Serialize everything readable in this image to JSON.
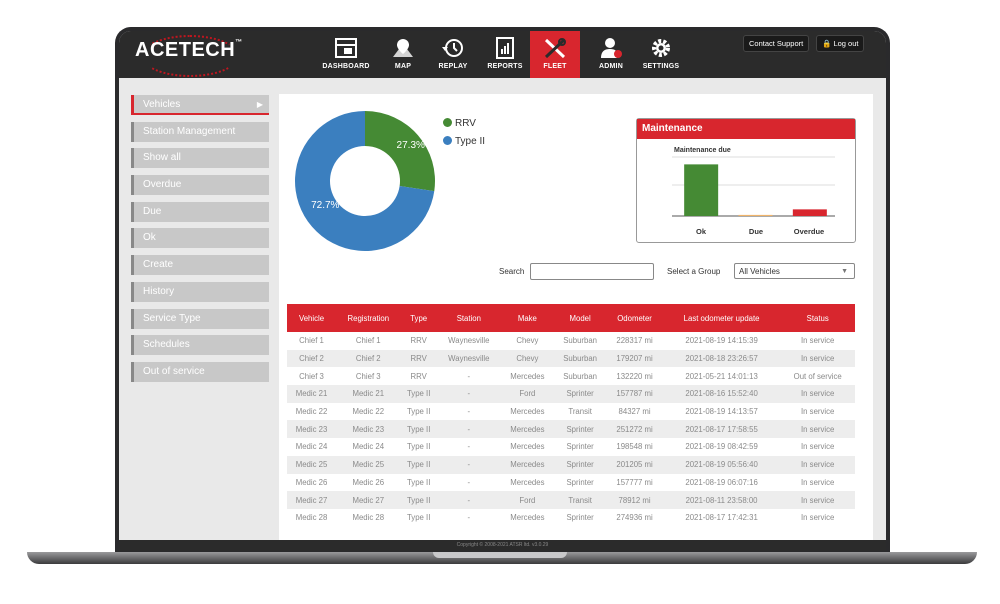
{
  "app": {
    "logo": "ACETECH",
    "logo_tm": "™",
    "nav": [
      {
        "label": "DASHBOARD",
        "icon": "dashboard-icon"
      },
      {
        "label": "MAP",
        "icon": "map-icon"
      },
      {
        "label": "REPLAY",
        "icon": "replay-icon"
      },
      {
        "label": "REPORTS",
        "icon": "reports-icon"
      },
      {
        "label": "FLEET",
        "icon": "fleet-icon"
      },
      {
        "label": "ADMIN",
        "icon": "admin-icon"
      },
      {
        "label": "SETTINGS",
        "icon": "settings-icon"
      }
    ],
    "contact_support": "Contact Support",
    "logout": "Log out",
    "accent": "#d8262e"
  },
  "sidebar": {
    "items": [
      {
        "label": "Vehicles"
      },
      {
        "label": "Station Management"
      },
      {
        "label": "Show all"
      },
      {
        "label": "Overdue"
      },
      {
        "label": "Due"
      },
      {
        "label": "Ok"
      },
      {
        "label": "Create"
      },
      {
        "label": "History"
      },
      {
        "label": "Service Type"
      },
      {
        "label": "Schedules"
      },
      {
        "label": "Out of service"
      }
    ]
  },
  "donut": {
    "slices": [
      {
        "name": "RRV",
        "value": 27.3,
        "label": "27.3%",
        "color": "#458a34"
      },
      {
        "name": "Type II",
        "value": 72.7,
        "label": "72.7%",
        "color": "#3b7fbf"
      }
    ]
  },
  "maintenance": {
    "title": "Maintenance",
    "subtitle": "Maintenance due",
    "bars": [
      {
        "label": "Ok",
        "value": 14,
        "color": "#458a34"
      },
      {
        "label": "Due",
        "value": 0.3,
        "color": "#f0b46a"
      },
      {
        "label": "Overdue",
        "value": 1.8,
        "color": "#d8262e"
      }
    ],
    "ymax": 16
  },
  "filters": {
    "search_label": "Search",
    "search_value": "",
    "group_label": "Select a Group",
    "group_value": "All Vehicles"
  },
  "table": {
    "headers": [
      "Vehicle",
      "Registration",
      "Type",
      "Station",
      "Make",
      "Model",
      "Odometer",
      "Last odometer update",
      "Status"
    ],
    "rows": [
      [
        "Chief 1",
        "Chief 1",
        "RRV",
        "Waynesville",
        "Chevy",
        "Suburban",
        "228317 mi",
        "2021-08-19  14:15:39",
        "In service"
      ],
      [
        "Chief 2",
        "Chief 2",
        "RRV",
        "Waynesville",
        "Chevy",
        "Suburban",
        "179207 mi",
        "2021-08-18  23:26:57",
        "In service"
      ],
      [
        "Chief 3",
        "Chief 3",
        "RRV",
        "-",
        "Mercedes",
        "Suburban",
        "132220 mi",
        "2021-05-21  14:01:13",
        "Out of service"
      ],
      [
        "Medic 21",
        "Medic 21",
        "Type II",
        "-",
        "Ford",
        "Sprinter",
        "157787 mi",
        "2021-08-16  15:52:40",
        "In service"
      ],
      [
        "Medic 22",
        "Medic 22",
        "Type II",
        "-",
        "Mercedes",
        "Transit",
        "84327 mi",
        "2021-08-19  14:13:57",
        "In service"
      ],
      [
        "Medic 23",
        "Medic 23",
        "Type II",
        "-",
        "Mercedes",
        "Sprinter",
        "251272 mi",
        "2021-08-17  17:58:55",
        "In service"
      ],
      [
        "Medic 24",
        "Medic 24",
        "Type II",
        "-",
        "Mercedes",
        "Sprinter",
        "198548 mi",
        "2021-08-19  08:42:59",
        "In service"
      ],
      [
        "Medic 25",
        "Medic 25",
        "Type II",
        "-",
        "Mercedes",
        "Sprinter",
        "201205 mi",
        "2021-08-19  05:56:40",
        "In service"
      ],
      [
        "Medic 26",
        "Medic 26",
        "Type II",
        "-",
        "Mercedes",
        "Sprinter",
        "157777 mi",
        "2021-08-19  06:07:16",
        "In service"
      ],
      [
        "Medic 27",
        "Medic 27",
        "Type II",
        "-",
        "Ford",
        "Transit",
        "78912 mi",
        "2021-08-11  23:58:00",
        "In service"
      ],
      [
        "Medic 28",
        "Medic 28",
        "Type II",
        "-",
        "Mercedes",
        "Sprinter",
        "274936 mi",
        "2021-08-17  17:42:31",
        "In service"
      ]
    ]
  },
  "footer": "Copyright © 2008-2021 ATSR ltd.   v3.0.29"
}
